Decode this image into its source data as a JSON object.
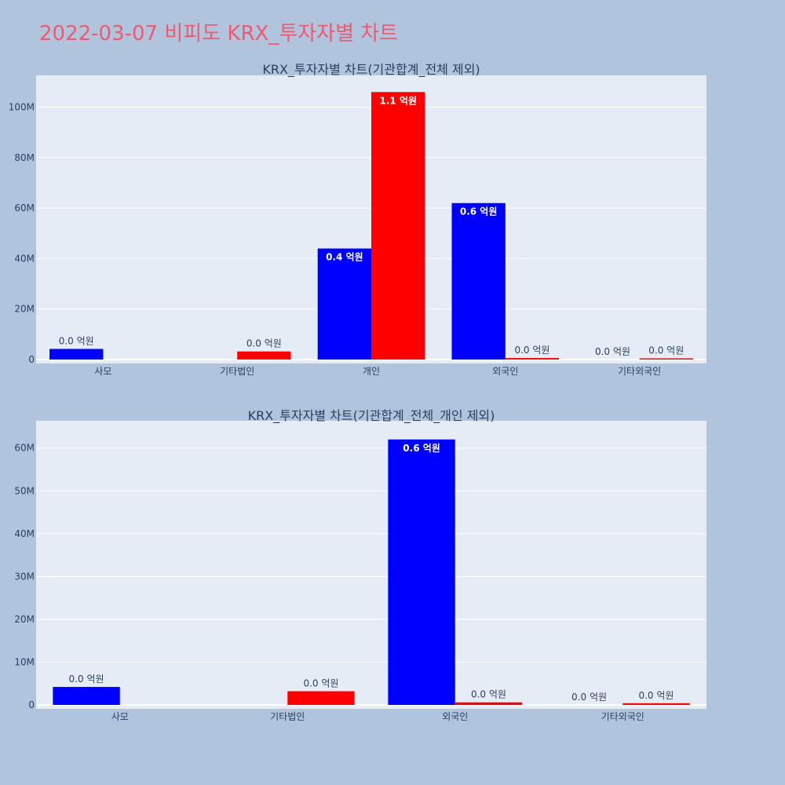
{
  "page": {
    "title": "2022-03-07 비피도 KRX_투자자별 차트",
    "background": "#b0c4de",
    "title_color": "#ef5a6f",
    "plot_background": "#e5ecf6"
  },
  "colors": {
    "buy": "#0000ff",
    "sell": "#ff0000"
  },
  "chart_data": [
    {
      "type": "bar",
      "title": "KRX_투자자별 차트(기관합계_전체 제외)",
      "categories": [
        "사모",
        "기타법인",
        "개인",
        "외국인",
        "기타외국인"
      ],
      "series": [
        {
          "color": "#0000ff",
          "values": [
            4200000,
            0,
            44000000,
            62000000,
            0
          ],
          "labels": [
            "0.0 억원",
            "",
            "0.4 억원",
            "0.6 억원",
            "0.0 억원"
          ]
        },
        {
          "color": "#ff0000",
          "values": [
            0,
            3200000,
            106000000,
            600000,
            400000
          ],
          "labels": [
            "",
            "0.0 억원",
            "1.1 억원",
            "0.0 억원",
            "0.0 억원"
          ]
        }
      ],
      "ylim": [
        0,
        112000000
      ],
      "yticks": [
        0,
        20000000,
        40000000,
        60000000,
        80000000,
        100000000
      ],
      "ytick_labels": [
        "0",
        "20M",
        "40M",
        "60M",
        "80M",
        "100M"
      ],
      "xlabel": "",
      "ylabel": "",
      "grid": true
    },
    {
      "type": "bar",
      "title": "KRX_투자자별 차트(기관합계_전체_개인 제외)",
      "categories": [
        "사모",
        "기타법인",
        "외국인",
        "기타외국인"
      ],
      "series": [
        {
          "color": "#0000ff",
          "values": [
            4200000,
            0,
            62000000,
            0
          ],
          "labels": [
            "0.0 억원",
            "",
            "0.6 억원",
            "0.0 억원"
          ]
        },
        {
          "color": "#ff0000",
          "values": [
            0,
            3200000,
            600000,
            400000
          ],
          "labels": [
            "",
            "0.0 억원",
            "0.0 억원",
            "0.0 억원"
          ]
        }
      ],
      "ylim": [
        0,
        66000000
      ],
      "yticks": [
        0,
        10000000,
        20000000,
        30000000,
        40000000,
        50000000,
        60000000
      ],
      "ytick_labels": [
        "0",
        "10M",
        "20M",
        "30M",
        "40M",
        "50M",
        "60M"
      ],
      "xlabel": "",
      "ylabel": "",
      "grid": true
    }
  ]
}
